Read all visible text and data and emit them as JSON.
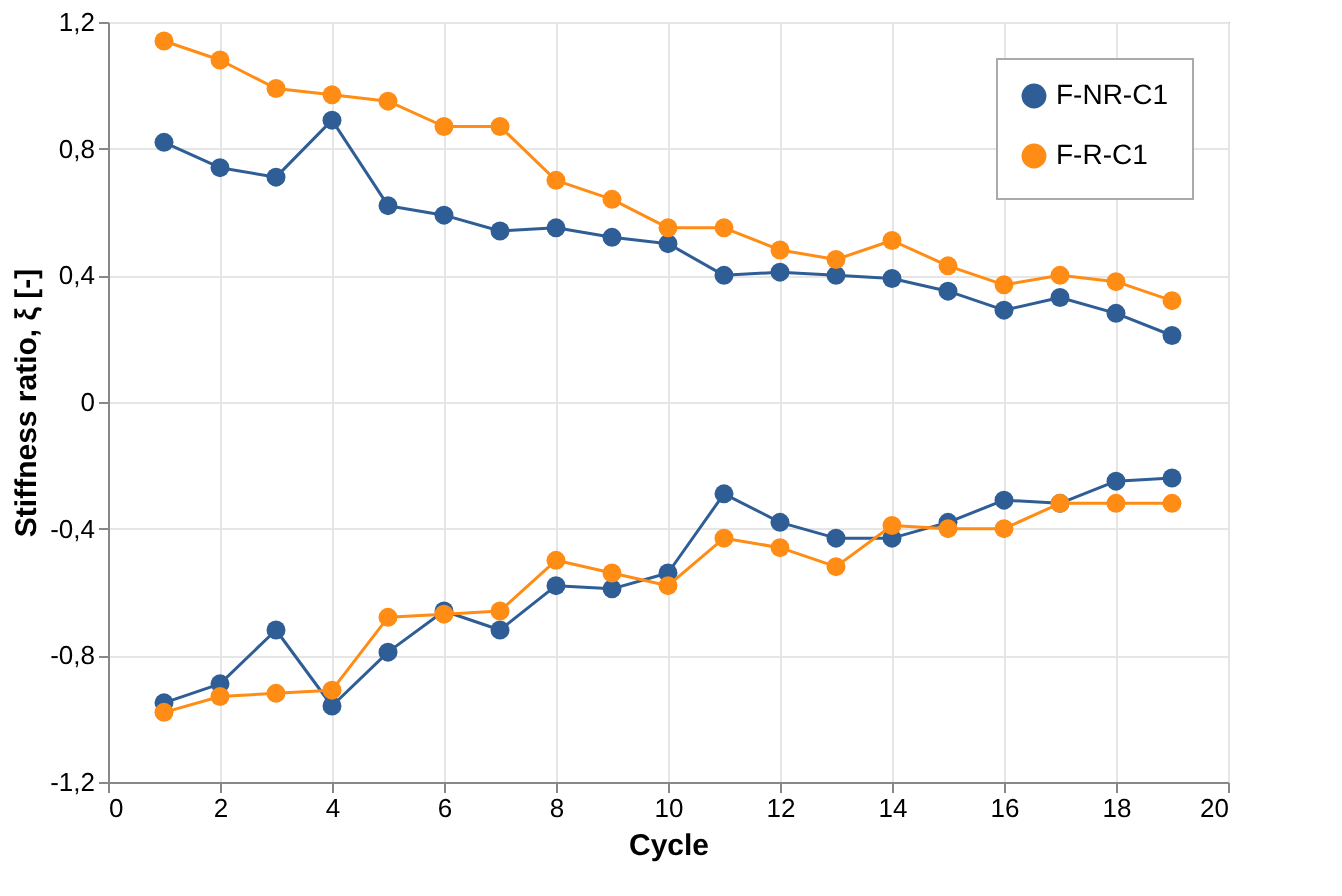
{
  "chart_data": {
    "type": "line",
    "xlabel": "Cycle",
    "ylabel": "Stiffness ratio, ξ [-]",
    "xlim": [
      0,
      20
    ],
    "xticks": [
      0,
      2,
      4,
      6,
      8,
      10,
      12,
      14,
      16,
      18,
      20
    ],
    "ylim": [
      -1.2,
      1.2
    ],
    "yticks": [
      {
        "value": -1.2,
        "label": "-1,2"
      },
      {
        "value": -0.8,
        "label": "-0,8"
      },
      {
        "value": -0.4,
        "label": "-0,4"
      },
      0,
      {
        "value": 0.4,
        "label": "0,4"
      },
      {
        "value": 0.8,
        "label": "0,8"
      },
      {
        "value": 1.2,
        "label": "1,2"
      }
    ],
    "x": [
      1,
      2,
      3,
      4,
      5,
      6,
      7,
      8,
      9,
      10,
      11,
      12,
      13,
      14,
      15,
      16,
      17,
      18,
      19
    ],
    "grid": true,
    "legend": "top right",
    "marker": "circle",
    "line_style": "solid",
    "series": [
      {
        "name": "F-NR-C1",
        "color": "#2f5d95",
        "values": [
          0.82,
          0.74,
          0.71,
          0.89,
          0.62,
          0.59,
          0.54,
          0.55,
          0.52,
          0.5,
          0.4,
          0.41,
          0.4,
          0.39,
          0.35,
          0.29,
          0.33,
          0.28,
          0.21
        ]
      },
      {
        "name": "F-R-C1",
        "color": "#ff8c14",
        "values": [
          1.14,
          1.08,
          0.99,
          0.97,
          0.95,
          0.87,
          0.87,
          0.7,
          0.64,
          0.55,
          0.55,
          0.48,
          0.45,
          0.51,
          0.43,
          0.37,
          0.4,
          0.38,
          0.32
        ]
      },
      {
        "color": "#2f5d95",
        "values": [
          -0.95,
          -0.89,
          -0.72,
          -0.96,
          -0.79,
          -0.66,
          -0.72,
          -0.58,
          -0.59,
          -0.54,
          -0.29,
          -0.38,
          -0.43,
          -0.43,
          -0.38,
          -0.31,
          -0.32,
          -0.25,
          -0.24
        ]
      },
      {
        "color": "#ff8c14",
        "values": [
          -0.98,
          -0.93,
          -0.92,
          -0.91,
          -0.68,
          -0.67,
          -0.66,
          -0.5,
          -0.54,
          -0.58,
          -0.43,
          -0.46,
          -0.52,
          -0.39,
          -0.4,
          -0.4,
          -0.32,
          -0.32,
          -0.32
        ]
      }
    ]
  }
}
